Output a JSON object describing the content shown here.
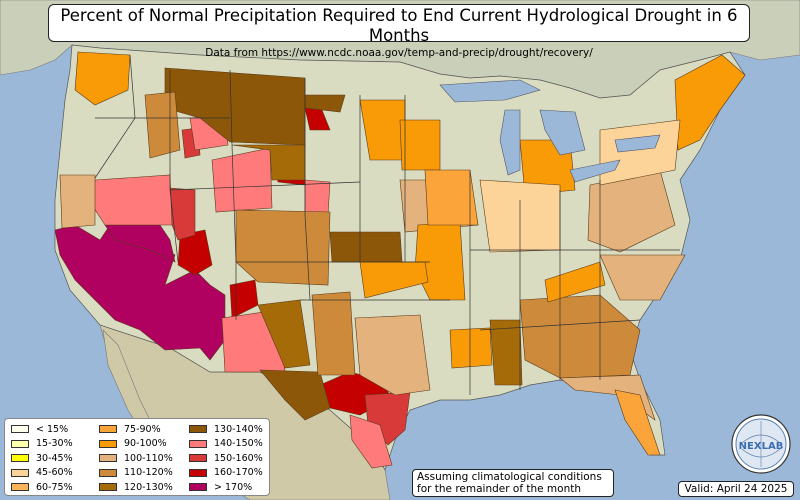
{
  "title": "Percent of Normal Precipitation Required to End Current Hydrological Drought in 6 Months",
  "subtitle": "Data from https://www.ncdc.noaa.gov/temp-and-precip/drought/recovery/",
  "legend": [
    {
      "label": "< 15%",
      "color": "#fffff0"
    },
    {
      "label": "15-30%",
      "color": "#ffffb0"
    },
    {
      "label": "30-45%",
      "color": "#ffff00"
    },
    {
      "label": "45-60%",
      "color": "#fcd49a"
    },
    {
      "label": "60-75%",
      "color": "#fbb45a"
    },
    {
      "label": "75-90%",
      "color": "#fba43a"
    },
    {
      "label": "90-100%",
      "color": "#f99a07"
    },
    {
      "label": "100-110%",
      "color": "#e4b27c"
    },
    {
      "label": "110-120%",
      "color": "#cd8a3a"
    },
    {
      "label": "120-130%",
      "color": "#a66b09"
    },
    {
      "label": "130-140%",
      "color": "#8c5708"
    },
    {
      "label": "140-150%",
      "color": "#ff7b7b"
    },
    {
      "label": "150-160%",
      "color": "#d83a3a"
    },
    {
      "label": "160-170%",
      "color": "#c40000"
    },
    {
      "label": "> 170%",
      "color": "#b00060"
    }
  ],
  "note_line1": "Assuming climatological conditions",
  "note_line2": "for the remainder of the month",
  "valid": "Valid: April 24 2025",
  "logo_text": "NEXLAB",
  "colors": {
    "ocean": "#9cb8d8",
    "land": "#d9dcc0",
    "mexico": "#cfc9a8",
    "canada": "#c9cfb8"
  }
}
